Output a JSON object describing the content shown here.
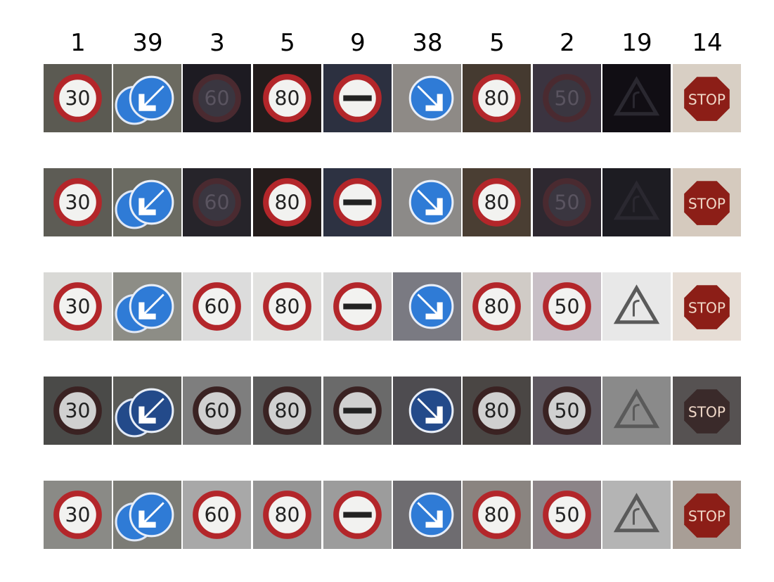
{
  "column_labels": [
    "1",
    "39",
    "3",
    "5",
    "9",
    "38",
    "5",
    "2",
    "19",
    "14"
  ],
  "sign_types": [
    {
      "kind": "speed",
      "text": "30"
    },
    {
      "kind": "blue-arrow",
      "direction": "down-left"
    },
    {
      "kind": "speed",
      "text": "60"
    },
    {
      "kind": "speed",
      "text": "80"
    },
    {
      "kind": "no-passing",
      "text": ""
    },
    {
      "kind": "blue-arrow",
      "direction": "down-right"
    },
    {
      "kind": "speed",
      "text": "80"
    },
    {
      "kind": "speed",
      "text": "50"
    },
    {
      "kind": "warning-curve",
      "text": ""
    },
    {
      "kind": "stop",
      "text": "STOP"
    }
  ],
  "row_variants": [
    "original",
    "enhanced",
    "brightened",
    "grayscale-contrast",
    "normalized"
  ],
  "colors": {
    "red": "#b3262a",
    "blue": "#2f7bd6",
    "stop_red": "#8c1e17",
    "dark_bg": "#1e1a1f"
  }
}
